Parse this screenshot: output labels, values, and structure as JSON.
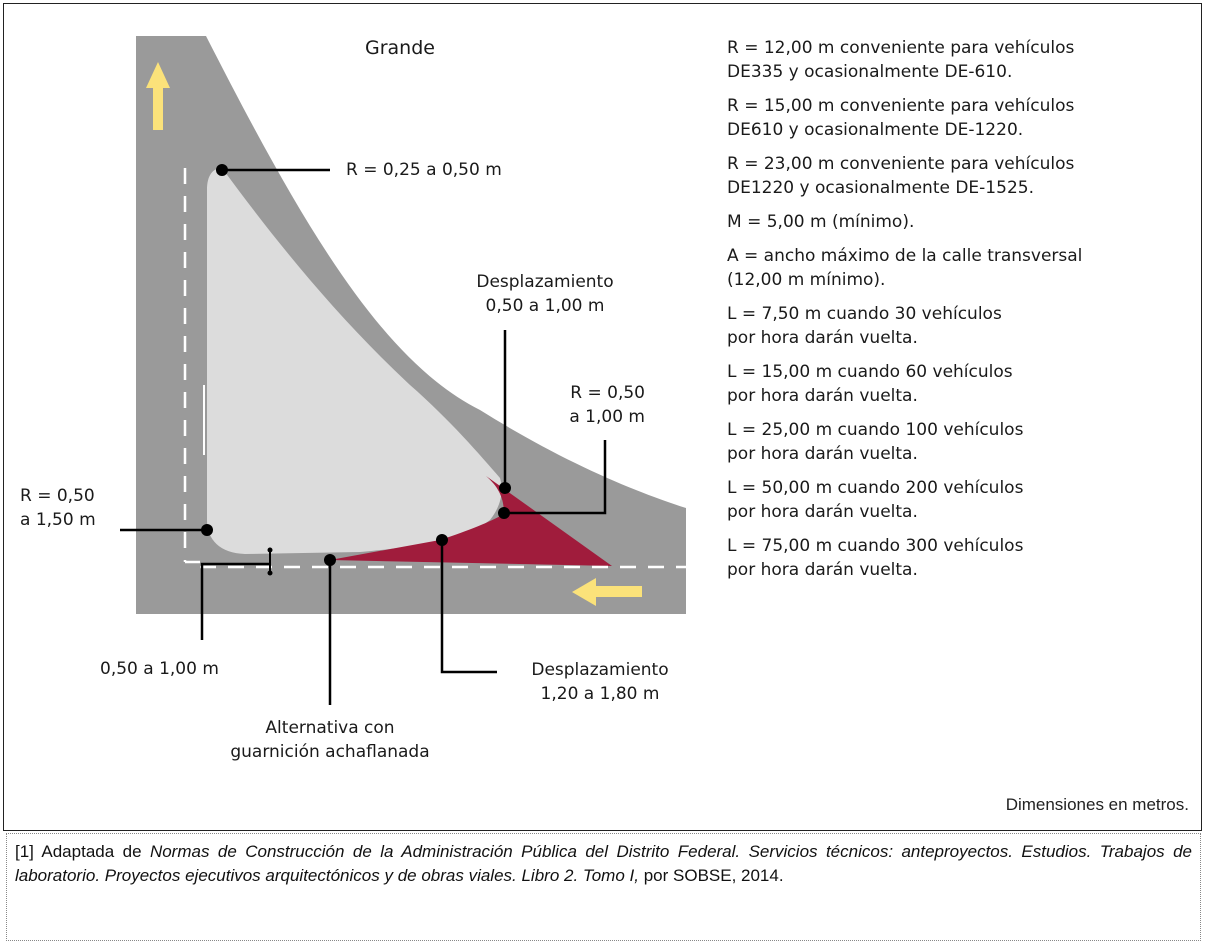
{
  "diagram": {
    "title": "Grande",
    "labels": {
      "r_corner_top": "R = 0,25 a 0,50 m",
      "desplazamiento_top": [
        "Desplazamiento",
        "0,50 a 1,00 m"
      ],
      "r_right": [
        "R = 0,50",
        "a 1,00 m"
      ],
      "r_left": [
        "R = 0,50",
        "a 1,50 m"
      ],
      "offset_bottom_left": "0,50 a 1,00 m",
      "desplazamiento_bottom": [
        "Desplazamiento",
        "1,20 a 1,80 m"
      ],
      "alternativa": [
        "Alternativa con",
        "guarnición achaflanada"
      ]
    },
    "colors": {
      "road": "#9a9a9a",
      "island": "#dcdcdc",
      "taper": "#a01c3c",
      "arrow": "#fbe27a",
      "lane_marking": "#ffffff",
      "leader": "#000000"
    },
    "icons": [
      "arrow-up-icon",
      "arrow-left-icon"
    ]
  },
  "specs": [
    [
      "R = 12,00 m conveniente para vehículos",
      "DE335 y ocasionalmente DE-610."
    ],
    [
      "R = 15,00 m conveniente para vehículos",
      "DE610 y ocasionalmente DE-1220."
    ],
    [
      "R = 23,00 m conveniente para vehículos",
      "DE1220 y ocasionalmente DE-1525."
    ],
    [
      "M = 5,00 m (mínimo)."
    ],
    [
      "A = ancho máximo de la calle transversal",
      "(12,00 m mínimo)."
    ],
    [
      "L = 7,50 m cuando 30 vehículos",
      "por hora darán vuelta."
    ],
    [
      "L = 15,00 m cuando 60 vehículos",
      "por hora darán vuelta."
    ],
    [
      "L = 25,00 m cuando 100 vehículos",
      "por hora darán vuelta."
    ],
    [
      "L = 50,00 m cuando 200 vehículos",
      "por hora darán vuelta."
    ],
    [
      "L = 75,00 m cuando 300 vehículos",
      "por hora darán vuelta."
    ]
  ],
  "units_note": "Dimensiones en metros.",
  "footnote": {
    "prefix": "[1] Adaptada de ",
    "italic": "Normas de Construcción de la Administración Pública del Distrito Federal. Servicios técnicos: anteproyectos. Estudios. Trabajos de laboratorio. Proyectos ejecutivos arquitectónicos y de obras viales. Libro 2. Tomo I,",
    "suffix": " por SOBSE, 2014."
  }
}
